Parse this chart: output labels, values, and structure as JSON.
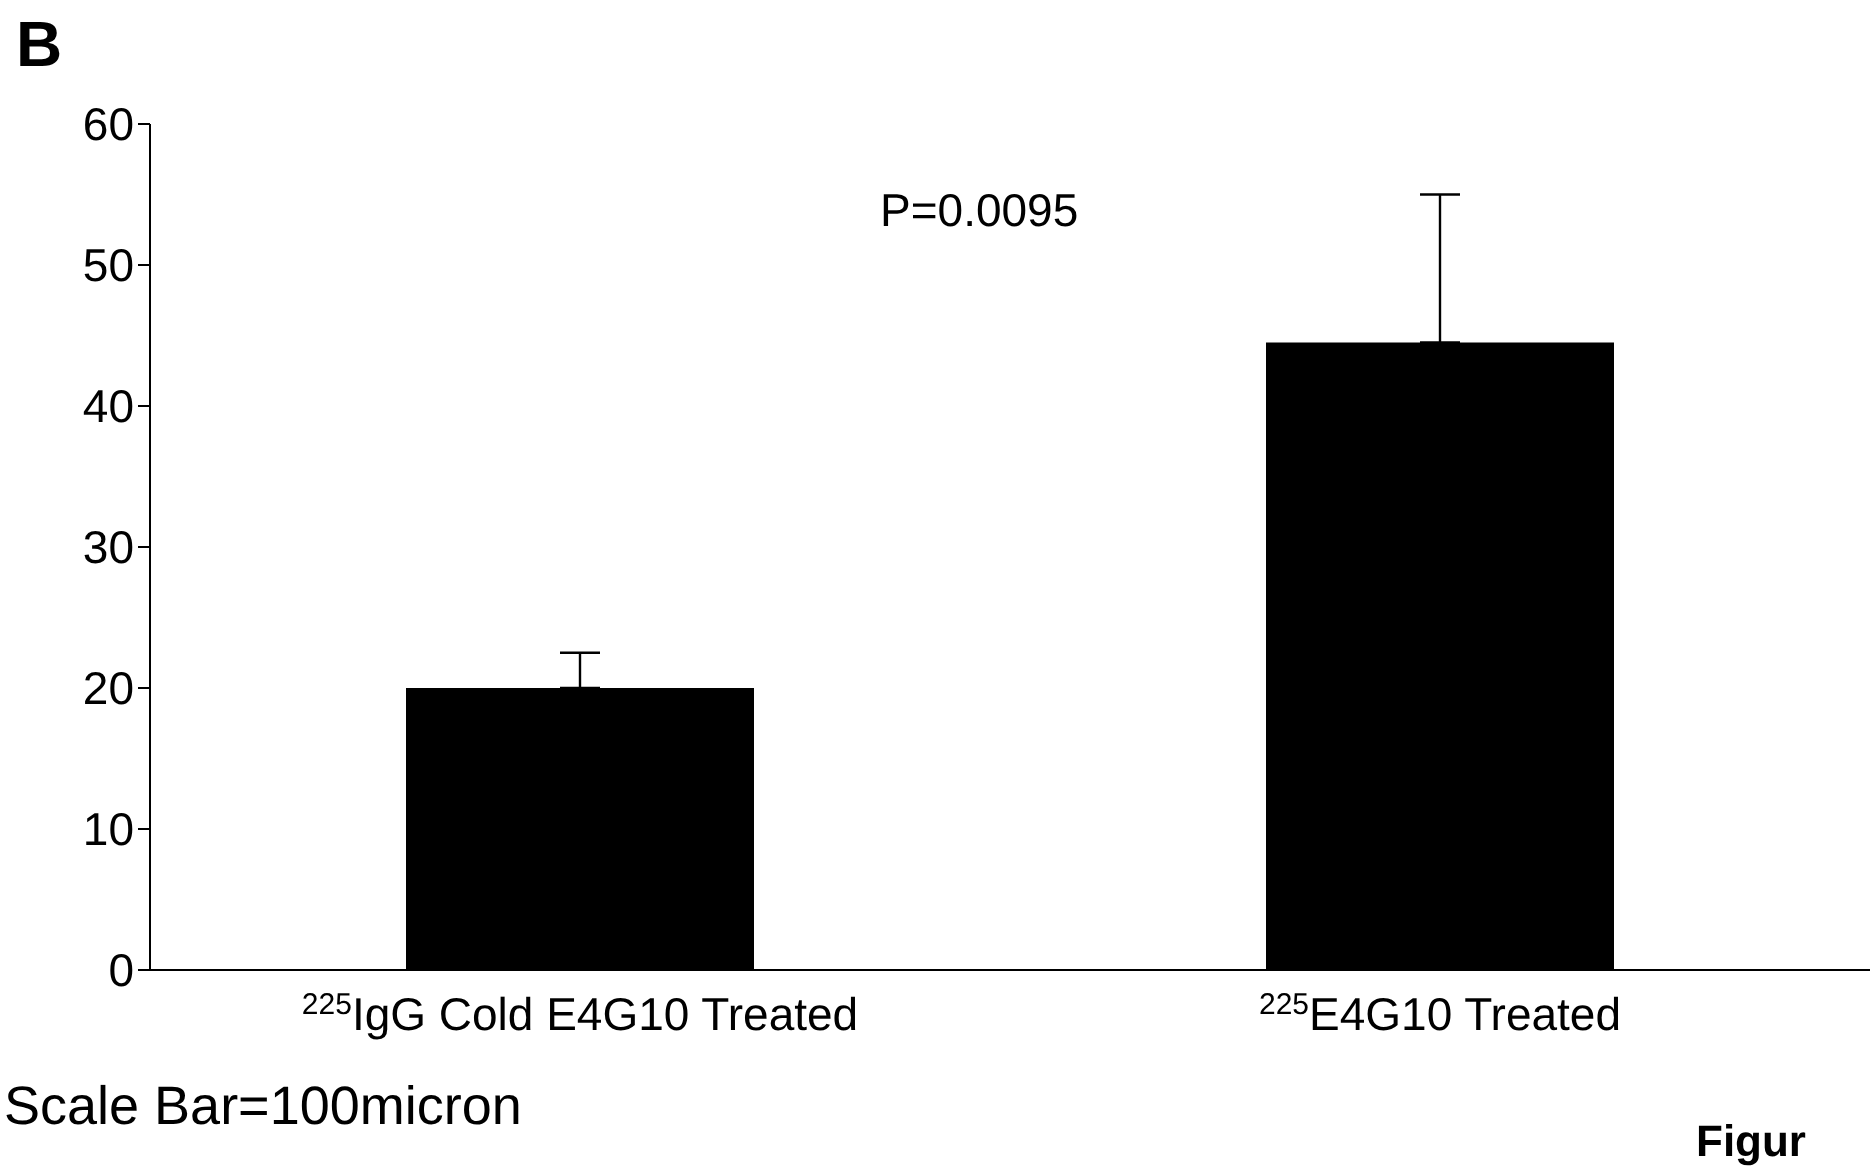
{
  "chart_data": {
    "type": "bar",
    "title": "B",
    "categories": [
      "$^{225}$IgG Cold E4G10 Treated",
      "$^{225}$E4G10 Treated"
    ],
    "values": [
      20,
      44.5
    ],
    "color": "#000000",
    "errors": [
      [
        20,
        22.5
      ],
      [
        44.5,
        55
      ]
    ],
    "ylim": [
      0,
      60
    ],
    "yticks": [
      0,
      10,
      20,
      30,
      40,
      50,
      60
    ],
    "grid": false,
    "annotations": [
      "P=0.0095",
      "Scale Bar=100micron",
      "Figur"
    ]
  }
}
